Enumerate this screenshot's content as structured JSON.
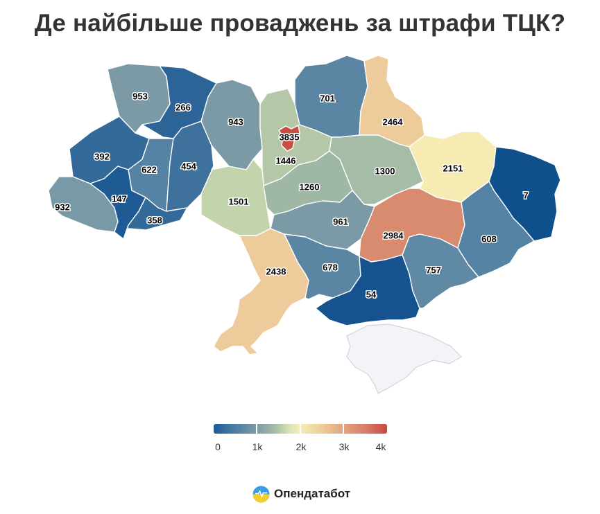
{
  "title": "Де найбільше проваджень за штрафи ТЦК?",
  "regions": [
    {
      "id": "volyn",
      "value": 953,
      "label": "953",
      "color": "#7b9aa6"
    },
    {
      "id": "rivne",
      "value": 266,
      "label": "266",
      "color": "#2c6497"
    },
    {
      "id": "lviv",
      "value": 392,
      "label": "392",
      "color": "#336a99"
    },
    {
      "id": "ternopil",
      "value": 622,
      "label": "622",
      "color": "#5583a4"
    },
    {
      "id": "khmelnytskyi",
      "value": 454,
      "label": "454",
      "color": "#3e719c"
    },
    {
      "id": "zakarpattia",
      "value": 932,
      "label": "932",
      "color": "#7a99a6"
    },
    {
      "id": "ivano-frankivsk",
      "value": 147,
      "label": "147",
      "color": "#1e5a93"
    },
    {
      "id": "chernivtsi",
      "value": 358,
      "label": "358",
      "color": "#336a99"
    },
    {
      "id": "zhytomyr",
      "value": 943,
      "label": "943",
      "color": "#7b9aa6"
    },
    {
      "id": "kyiv-oblast",
      "value": 1446,
      "label": "1446",
      "color": "#b4c8a8"
    },
    {
      "id": "kyiv-city",
      "value": 3835,
      "label": "3835",
      "color": "#c84d42"
    },
    {
      "id": "chernihiv",
      "value": 701,
      "label": "701",
      "color": "#5a86a4"
    },
    {
      "id": "sumy",
      "value": 2464,
      "label": "2464",
      "color": "#eecb9a"
    },
    {
      "id": "vinnytsia",
      "value": 1501,
      "label": "1501",
      "color": "#c3d3ab"
    },
    {
      "id": "cherkasy",
      "value": 1260,
      "label": "1260",
      "color": "#9fb8a6"
    },
    {
      "id": "poltava",
      "value": 1300,
      "label": "1300",
      "color": "#a5bca7"
    },
    {
      "id": "kharkiv",
      "value": 2151,
      "label": "2151",
      "color": "#f6ecb3"
    },
    {
      "id": "luhansk",
      "value": 7,
      "label": "7",
      "color": "#0f4f8c"
    },
    {
      "id": "kirovohrad",
      "value": 961,
      "label": "961",
      "color": "#7b9aa6"
    },
    {
      "id": "dnipropetrovsk",
      "value": 2984,
      "label": "2984",
      "color": "#d98b6f"
    },
    {
      "id": "donetsk",
      "value": 608,
      "label": "608",
      "color": "#5583a4"
    },
    {
      "id": "odesa",
      "value": 2438,
      "label": "2438",
      "color": "#eecb9a"
    },
    {
      "id": "mykolaiv",
      "value": 678,
      "label": "678",
      "color": "#5a86a4"
    },
    {
      "id": "kherson",
      "value": 54,
      "label": "54",
      "color": "#15528f"
    },
    {
      "id": "zaporizhzhia",
      "value": 757,
      "label": "757",
      "color": "#5f89a5"
    }
  ],
  "legend": {
    "min": 0,
    "max": 4000,
    "labels": [
      "0",
      "1k",
      "2k",
      "3k",
      "4k"
    ]
  },
  "brand": {
    "name": "Опендатабот",
    "logo_icon": "opendatabot-logo-icon"
  }
}
